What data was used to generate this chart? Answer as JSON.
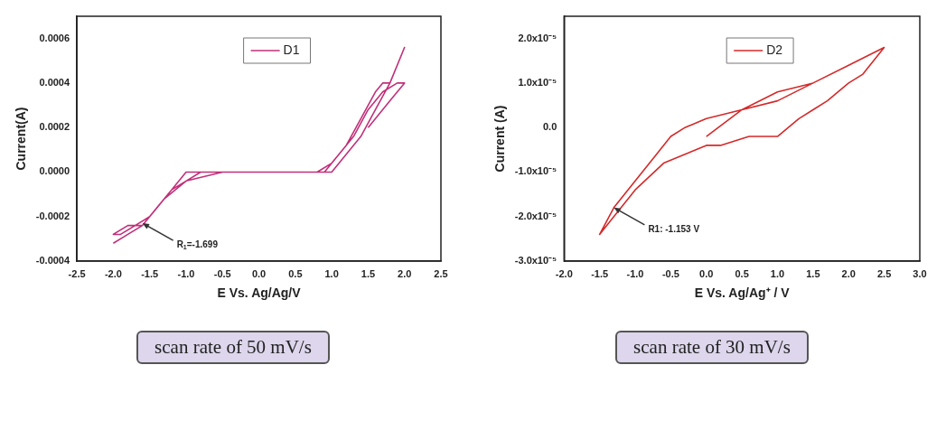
{
  "chart_data": [
    {
      "type": "line",
      "xlabel": "E Vs. Ag/Ag/V",
      "ylabel": "Current(A)",
      "xlim": [
        -2.5,
        2.5
      ],
      "ylim": [
        -0.0004,
        0.0007
      ],
      "xticks": [
        {
          "value": -2.5,
          "label": "-2.5"
        },
        {
          "value": -2,
          "label": "-2.0"
        },
        {
          "value": -1.5,
          "label": "-1.5"
        },
        {
          "value": -1,
          "label": "-1.0"
        },
        {
          "value": -0.5,
          "label": "-0.5"
        },
        {
          "value": 0,
          "label": "0.0"
        },
        {
          "value": 0.5,
          "label": "0.5"
        },
        {
          "value": 1,
          "label": "1.0"
        },
        {
          "value": 1.5,
          "label": "1.5"
        },
        {
          "value": 2,
          "label": "2.0"
        },
        {
          "value": 2.5,
          "label": "2.5"
        }
      ],
      "yticks": [
        {
          "value": -0.0004,
          "label": "-0.0004"
        },
        {
          "value": -0.0002,
          "label": "-0.0002"
        },
        {
          "value": 0,
          "label": "0.0000"
        },
        {
          "value": 0.0002,
          "label": "0.0002"
        },
        {
          "value": 0.0004,
          "label": "0.0004"
        },
        {
          "value": 0.0006,
          "label": "0.0006"
        }
      ],
      "grid": false,
      "legend": "top",
      "marker": "none",
      "line_style": "solid",
      "series": [
        {
          "name": "D1",
          "color": "#c0307a",
          "x": [
            -2.0,
            -1.8,
            -1.6,
            -1.4,
            -1.2,
            -1.0,
            -0.5,
            0.5,
            0.8,
            1.0,
            1.2,
            1.4,
            1.6,
            1.7,
            1.8,
            2.0,
            1.9,
            1.8,
            1.6,
            1.4,
            1.2,
            1.0,
            0.8,
            0.0,
            -0.8,
            -1.0,
            -1.2,
            -1.4,
            -1.6,
            -1.8,
            -2.0,
            -1.9,
            -1.7,
            -1.5,
            -1.3,
            -1.0,
            -0.5,
            0.5,
            0.9,
            1.1,
            1.3,
            1.5,
            1.7,
            1.9,
            2.0,
            1.8,
            1.5
          ],
          "values": [
            -0.00032,
            -0.00028,
            -0.00024,
            -0.00016,
            -8e-05,
            0,
            0,
            0,
            0,
            4e-05,
            0.00012,
            0.00024,
            0.00036,
            0.0004,
            0.0004,
            0.00056,
            0.00048,
            0.0004,
            0.00028,
            0.00016,
            8e-05,
            0,
            0,
            0,
            0,
            -4e-05,
            -8e-05,
            -0.00016,
            -0.00024,
            -0.00024,
            -0.00028,
            -0.00028,
            -0.00024,
            -0.0002,
            -0.00012,
            -4e-05,
            0,
            0,
            0,
            8e-05,
            0.00016,
            0.00028,
            0.00036,
            0.0004,
            0.0004,
            0.00032,
            0.0002
          ]
        }
      ],
      "annotations": [
        {
          "text": "R$_{1}$=-1.699",
          "x": -1.6,
          "y": -0.00023
        },
        "scan rate of 50 mV/s"
      ]
    },
    {
      "type": "line",
      "xlabel": "E Vs. Ag/Ag⁺ / V",
      "ylabel": "Current (A)",
      "xlim": [
        -2.0,
        3.0
      ],
      "ylim": [
        -3e-05,
        2.5e-05
      ],
      "xticks": [
        {
          "value": -2,
          "label": "-2.0"
        },
        {
          "value": -1.5,
          "label": "-1.5"
        },
        {
          "value": -1,
          "label": "-1.0"
        },
        {
          "value": -0.5,
          "label": "-0.5"
        },
        {
          "value": 0,
          "label": "0.0"
        },
        {
          "value": 0.5,
          "label": "0.5"
        },
        {
          "value": 1,
          "label": "1.0"
        },
        {
          "value": 1.5,
          "label": "1.5"
        },
        {
          "value": 2,
          "label": "2.0"
        },
        {
          "value": 2.5,
          "label": "2.5"
        },
        {
          "value": 3,
          "label": "3.0"
        }
      ],
      "yticks": [
        {
          "value": -3e-05,
          "label": "-3.0x10⁻⁵"
        },
        {
          "value": -2e-05,
          "label": "-2.0x10⁻⁵"
        },
        {
          "value": -1e-05,
          "label": "-1.0x10⁻⁵"
        },
        {
          "value": 0,
          "label": "0.0"
        },
        {
          "value": 1e-05,
          "label": "1.0x10⁻⁵"
        },
        {
          "value": 2e-05,
          "label": "2.0x10⁻⁵"
        }
      ],
      "grid": false,
      "legend": "top",
      "marker": "none",
      "line_style": "solid",
      "series": [
        {
          "name": "D2",
          "color": "#d42a2a",
          "x": [
            0.0,
            0.5,
            1.0,
            1.5,
            2.0,
            2.5,
            2.2,
            2.0,
            1.7,
            1.5,
            1.3,
            1.0,
            0.6,
            0.2,
            0.0,
            -0.3,
            -0.6,
            -1.0,
            -1.3,
            -1.5,
            -1.3,
            -1.0,
            -0.7,
            -0.5,
            -0.3,
            0.0,
            0.5,
            1.0,
            1.5,
            2.0,
            2.5
          ],
          "values": [
            -2e-06,
            4e-06,
            6e-06,
            1e-05,
            1.4e-05,
            1.8e-05,
            1.2e-05,
            1e-05,
            6e-06,
            4e-06,
            2e-06,
            -2e-06,
            -2e-06,
            -4e-06,
            -4e-06,
            -6e-06,
            -8e-06,
            -1.4e-05,
            -2e-05,
            -2.4e-05,
            -1.8e-05,
            -1.2e-05,
            -6e-06,
            -2e-06,
            0,
            2e-06,
            4e-06,
            8e-06,
            1e-05,
            1.4e-05,
            1.8e-05
          ]
        }
      ],
      "annotations": [
        {
          "text": "R1: -1.153 V",
          "x": -1.3,
          "y": -1.8e-05
        },
        "scan rate of 30 mV/s"
      ]
    }
  ]
}
